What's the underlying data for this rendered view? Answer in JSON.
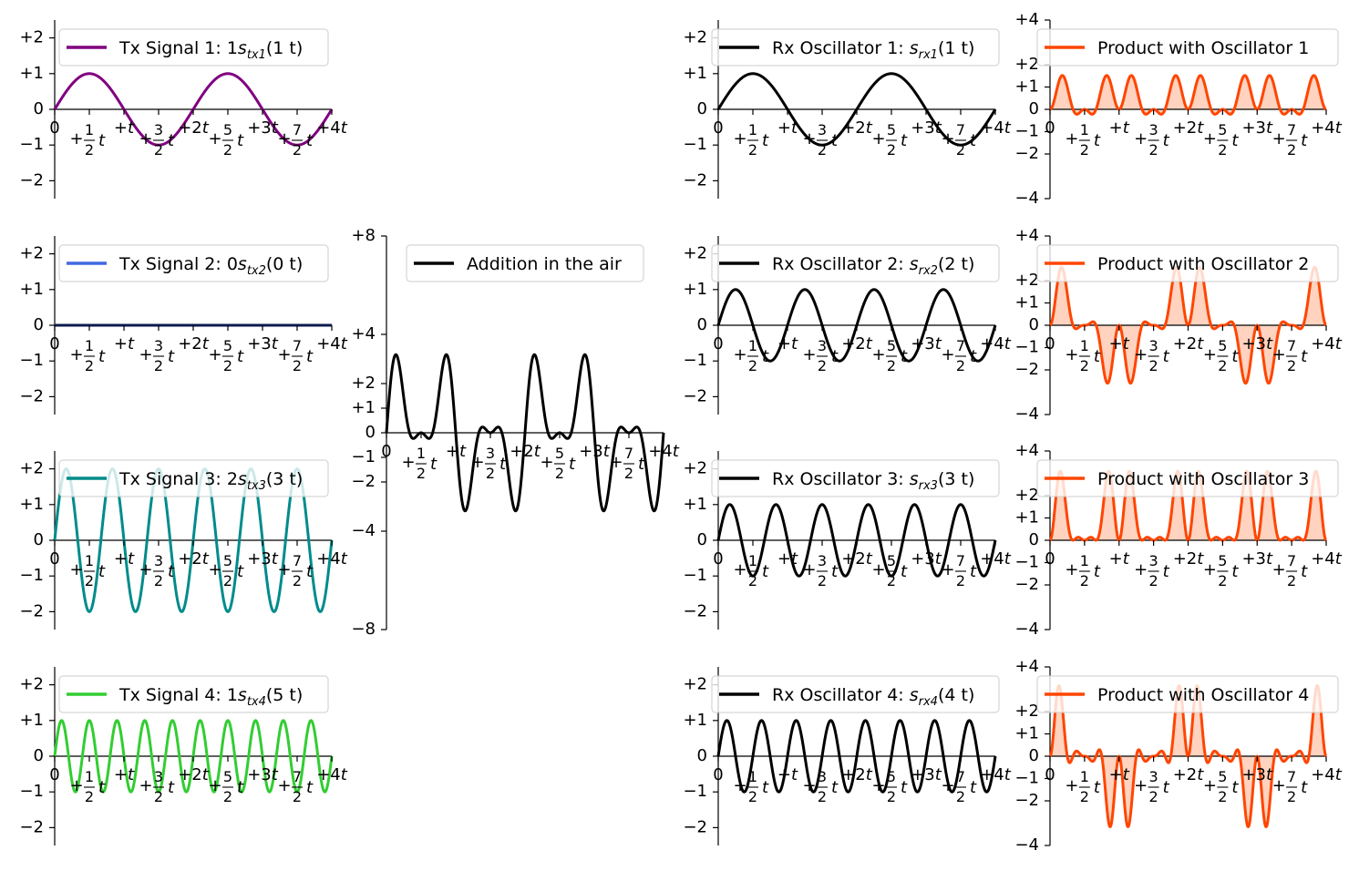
{
  "chart_data": [
    {
      "type": "line",
      "panel": "tx1",
      "formula": "tx",
      "series": [
        {
          "name": "Tx Signal 1: 1s_tx1(1 t)",
          "amplitude": 1,
          "frequency": 1,
          "color": "#800080"
        }
      ],
      "legend": {
        "label_main": "Tx Signal 1: 1",
        "label_symbol": "s",
        "label_sub": "tx1",
        "label_tail": "(1 t)"
      },
      "xlim": [
        0,
        4
      ],
      "ylim": [
        -2.5,
        2.5
      ],
      "xticks": [
        {
          "text": "0",
          "v": 0
        },
        {
          "text": "+½t",
          "v": 0.5
        },
        {
          "text": "+t",
          "v": 1
        },
        {
          "text": "+3/2t",
          "v": 1.5
        },
        {
          "text": "+2t",
          "v": 2
        },
        {
          "text": "+5/2t",
          "v": 2.5
        },
        {
          "text": "+3t",
          "v": 3
        },
        {
          "text": "+7/2t",
          "v": 3.5
        },
        {
          "text": "+4t",
          "v": 4
        }
      ],
      "yticks": [
        {
          "text": "−2",
          "v": -2
        },
        {
          "text": "−1",
          "v": -1
        },
        {
          "text": "0",
          "v": 0
        },
        {
          "text": "+1",
          "v": 1
        },
        {
          "text": "+2",
          "v": 2
        }
      ]
    },
    {
      "type": "line",
      "panel": "tx2",
      "formula": "tx",
      "series": [
        {
          "name": "Tx Signal 2: 0s_tx2(0 t)",
          "amplitude": 0,
          "frequency": 0,
          "color": "#4169e1"
        }
      ],
      "line_color": "#0b1b4d",
      "legend": {
        "label_main": "Tx Signal 2: 0",
        "label_symbol": "s",
        "label_sub": "tx2",
        "label_tail": "(0 t)"
      },
      "xlim": [
        0,
        4
      ],
      "ylim": [
        -2.5,
        2.5
      ],
      "xticks": [
        {
          "text": "0",
          "v": 0
        },
        {
          "text": "+½t",
          "v": 0.5
        },
        {
          "text": "+t",
          "v": 1
        },
        {
          "text": "+3/2t",
          "v": 1.5
        },
        {
          "text": "+2t",
          "v": 2
        },
        {
          "text": "+5/2t",
          "v": 2.5
        },
        {
          "text": "+3t",
          "v": 3
        },
        {
          "text": "+7/2t",
          "v": 3.5
        },
        {
          "text": "+4t",
          "v": 4
        }
      ],
      "yticks": [
        {
          "text": "−2",
          "v": -2
        },
        {
          "text": "−1",
          "v": -1
        },
        {
          "text": "0",
          "v": 0
        },
        {
          "text": "+1",
          "v": 1
        },
        {
          "text": "+2",
          "v": 2
        }
      ]
    },
    {
      "type": "line",
      "panel": "tx3",
      "formula": "tx",
      "series": [
        {
          "name": "Tx Signal 3: 2s_tx3(3 t)",
          "amplitude": 2,
          "frequency": 3,
          "color": "#008b8b"
        }
      ],
      "legend": {
        "label_main": "Tx Signal 3: 2",
        "label_symbol": "s",
        "label_sub": "tx3",
        "label_tail": "(3 t)"
      },
      "xlim": [
        0,
        4
      ],
      "ylim": [
        -2.5,
        2.5
      ],
      "xticks": [
        {
          "text": "0",
          "v": 0
        },
        {
          "text": "+½t",
          "v": 0.5
        },
        {
          "text": "+t",
          "v": 1
        },
        {
          "text": "+3/2t",
          "v": 1.5
        },
        {
          "text": "+2t",
          "v": 2
        },
        {
          "text": "+5/2t",
          "v": 2.5
        },
        {
          "text": "+3t",
          "v": 3
        },
        {
          "text": "+7/2t",
          "v": 3.5
        },
        {
          "text": "+4t",
          "v": 4
        }
      ],
      "yticks": [
        {
          "text": "−2",
          "v": -2
        },
        {
          "text": "−1",
          "v": -1
        },
        {
          "text": "0",
          "v": 0
        },
        {
          "text": "+1",
          "v": 1
        },
        {
          "text": "+2",
          "v": 2
        }
      ]
    },
    {
      "type": "line",
      "panel": "tx4",
      "formula": "tx",
      "series": [
        {
          "name": "Tx Signal 4: 1s_tx4(5 t)",
          "amplitude": 1,
          "frequency": 5,
          "color": "#32cd32"
        }
      ],
      "legend": {
        "label_main": "Tx Signal 4: 1",
        "label_symbol": "s",
        "label_sub": "tx4",
        "label_tail": "(5 t)"
      },
      "xlim": [
        0,
        4
      ],
      "ylim": [
        -2.5,
        2.5
      ],
      "xticks": [
        {
          "text": "0",
          "v": 0
        },
        {
          "text": "+½t",
          "v": 0.5
        },
        {
          "text": "+t",
          "v": 1
        },
        {
          "text": "+3/2t",
          "v": 1.5
        },
        {
          "text": "+2t",
          "v": 2
        },
        {
          "text": "+5/2t",
          "v": 2.5
        },
        {
          "text": "+3t",
          "v": 3
        },
        {
          "text": "+7/2t",
          "v": 3.5
        },
        {
          "text": "+4t",
          "v": 4
        }
      ],
      "yticks": [
        {
          "text": "−2",
          "v": -2
        },
        {
          "text": "−1",
          "v": -1
        },
        {
          "text": "0",
          "v": 0
        },
        {
          "text": "+1",
          "v": 1
        },
        {
          "text": "+2",
          "v": 2
        }
      ]
    },
    {
      "type": "line",
      "panel": "sum",
      "formula": "sum",
      "series": [
        {
          "name": "Addition in the air",
          "color": "#000000"
        }
      ],
      "legend": {
        "label_main": "Addition in the air"
      },
      "xlim": [
        0,
        4
      ],
      "ylim": [
        -8,
        8
      ],
      "xticks": [
        {
          "text": "0",
          "v": 0
        },
        {
          "text": "+½t",
          "v": 0.5
        },
        {
          "text": "+t",
          "v": 1
        },
        {
          "text": "+3/2t",
          "v": 1.5
        },
        {
          "text": "+2t",
          "v": 2
        },
        {
          "text": "+5/2t",
          "v": 2.5
        },
        {
          "text": "+3t",
          "v": 3
        },
        {
          "text": "+7/2t",
          "v": 3.5
        },
        {
          "text": "+4t",
          "v": 4
        }
      ],
      "yticks": [
        {
          "text": "−8",
          "v": -8
        },
        {
          "text": "−4",
          "v": -4
        },
        {
          "text": "−2",
          "v": -2
        },
        {
          "text": "−1",
          "v": -1
        },
        {
          "text": "0",
          "v": 0
        },
        {
          "text": "+1",
          "v": 1
        },
        {
          "text": "+2",
          "v": 2
        },
        {
          "text": "+4",
          "v": 4
        },
        {
          "text": "+8",
          "v": 8
        }
      ]
    },
    {
      "type": "line",
      "panel": "rx1",
      "formula": "rx",
      "series": [
        {
          "name": "Rx Oscillator 1: s_rx1(1 t)",
          "frequency": 1,
          "color": "#000000"
        }
      ],
      "legend": {
        "label_main": "Rx Oscillator 1: ",
        "label_symbol": "s",
        "label_sub": "rx1",
        "label_tail": "(1 t)"
      },
      "xlim": [
        0,
        4
      ],
      "ylim": [
        -2.5,
        2.5
      ],
      "xticks": [
        {
          "text": "0",
          "v": 0
        },
        {
          "text": "+½t",
          "v": 0.5
        },
        {
          "text": "+t",
          "v": 1
        },
        {
          "text": "+3/2t",
          "v": 1.5
        },
        {
          "text": "+2t",
          "v": 2
        },
        {
          "text": "+5/2t",
          "v": 2.5
        },
        {
          "text": "+3t",
          "v": 3
        },
        {
          "text": "+7/2t",
          "v": 3.5
        },
        {
          "text": "+4t",
          "v": 4
        }
      ],
      "yticks": [
        {
          "text": "−2",
          "v": -2
        },
        {
          "text": "−1",
          "v": -1
        },
        {
          "text": "0",
          "v": 0
        },
        {
          "text": "+1",
          "v": 1
        },
        {
          "text": "+2",
          "v": 2
        }
      ]
    },
    {
      "type": "line",
      "panel": "rx2",
      "formula": "rx",
      "series": [
        {
          "name": "Rx Oscillator 2: s_rx2(2 t)",
          "frequency": 2,
          "color": "#000000"
        }
      ],
      "legend": {
        "label_main": "Rx Oscillator 2: ",
        "label_symbol": "s",
        "label_sub": "rx2",
        "label_tail": "(2 t)"
      },
      "xlim": [
        0,
        4
      ],
      "ylim": [
        -2.5,
        2.5
      ],
      "xticks": [
        {
          "text": "0",
          "v": 0
        },
        {
          "text": "+½t",
          "v": 0.5
        },
        {
          "text": "+t",
          "v": 1
        },
        {
          "text": "+3/2t",
          "v": 1.5
        },
        {
          "text": "+2t",
          "v": 2
        },
        {
          "text": "+5/2t",
          "v": 2.5
        },
        {
          "text": "+3t",
          "v": 3
        },
        {
          "text": "+7/2t",
          "v": 3.5
        },
        {
          "text": "+4t",
          "v": 4
        }
      ],
      "yticks": [
        {
          "text": "−2",
          "v": -2
        },
        {
          "text": "−1",
          "v": -1
        },
        {
          "text": "0",
          "v": 0
        },
        {
          "text": "+1",
          "v": 1
        },
        {
          "text": "+2",
          "v": 2
        }
      ]
    },
    {
      "type": "line",
      "panel": "rx3",
      "formula": "rx",
      "series": [
        {
          "name": "Rx Oscillator 3: s_rx3(3 t)",
          "frequency": 3,
          "color": "#000000"
        }
      ],
      "legend": {
        "label_main": "Rx Oscillator 3: ",
        "label_symbol": "s",
        "label_sub": "rx3",
        "label_tail": "(3 t)"
      },
      "xlim": [
        0,
        4
      ],
      "ylim": [
        -2.5,
        2.5
      ],
      "xticks": [
        {
          "text": "0",
          "v": 0
        },
        {
          "text": "+½t",
          "v": 0.5
        },
        {
          "text": "+t",
          "v": 1
        },
        {
          "text": "+3/2t",
          "v": 1.5
        },
        {
          "text": "+2t",
          "v": 2
        },
        {
          "text": "+5/2t",
          "v": 2.5
        },
        {
          "text": "+3t",
          "v": 3
        },
        {
          "text": "+7/2t",
          "v": 3.5
        },
        {
          "text": "+4t",
          "v": 4
        }
      ],
      "yticks": [
        {
          "text": "−2",
          "v": -2
        },
        {
          "text": "−1",
          "v": -1
        },
        {
          "text": "0",
          "v": 0
        },
        {
          "text": "+1",
          "v": 1
        },
        {
          "text": "+2",
          "v": 2
        }
      ]
    },
    {
      "type": "line",
      "panel": "rx4",
      "formula": "rx",
      "series": [
        {
          "name": "Rx Oscillator 4: s_rx4(4 t)",
          "frequency": 4,
          "color": "#000000"
        }
      ],
      "legend": {
        "label_main": "Rx Oscillator 4: ",
        "label_symbol": "s",
        "label_sub": "rx4",
        "label_tail": "(4 t)"
      },
      "xlim": [
        0,
        4
      ],
      "ylim": [
        -2.5,
        2.5
      ],
      "xticks": [
        {
          "text": "0",
          "v": 0
        },
        {
          "text": "+½t",
          "v": 0.5
        },
        {
          "text": "+t",
          "v": 1
        },
        {
          "text": "+3/2t",
          "v": 1.5
        },
        {
          "text": "+2t",
          "v": 2
        },
        {
          "text": "+5/2t",
          "v": 2.5
        },
        {
          "text": "+3t",
          "v": 3
        },
        {
          "text": "+7/2t",
          "v": 3.5
        },
        {
          "text": "+4t",
          "v": 4
        }
      ],
      "yticks": [
        {
          "text": "−2",
          "v": -2
        },
        {
          "text": "−1",
          "v": -1
        },
        {
          "text": "0",
          "v": 0
        },
        {
          "text": "+1",
          "v": 1
        },
        {
          "text": "+2",
          "v": 2
        }
      ]
    },
    {
      "type": "area",
      "panel": "prod1",
      "formula": "product",
      "oscillator_frequency": 1,
      "series": [
        {
          "name": "Product with Oscillator 1",
          "color": "#ff4500",
          "fill": "#ffd3bf"
        }
      ],
      "legend": {
        "label_main": "Product with Oscillator 1"
      },
      "xlim": [
        0,
        4
      ],
      "ylim": [
        -4,
        4
      ],
      "xticks": [
        {
          "text": "0",
          "v": 0
        },
        {
          "text": "+½t",
          "v": 0.5
        },
        {
          "text": "+t",
          "v": 1
        },
        {
          "text": "+3/2t",
          "v": 1.5
        },
        {
          "text": "+2t",
          "v": 2
        },
        {
          "text": "+5/2t",
          "v": 2.5
        },
        {
          "text": "+3t",
          "v": 3
        },
        {
          "text": "+7/2t",
          "v": 3.5
        },
        {
          "text": "+4t",
          "v": 4
        }
      ],
      "yticks": [
        {
          "text": "−4",
          "v": -4
        },
        {
          "text": "−2",
          "v": -2
        },
        {
          "text": "−1",
          "v": -1
        },
        {
          "text": "0",
          "v": 0
        },
        {
          "text": "+1",
          "v": 1
        },
        {
          "text": "+2",
          "v": 2
        },
        {
          "text": "+4",
          "v": 4
        }
      ]
    },
    {
      "type": "area",
      "panel": "prod2",
      "formula": "product",
      "oscillator_frequency": 2,
      "series": [
        {
          "name": "Product with Oscillator 2",
          "color": "#ff4500",
          "fill": "#ffd3bf"
        }
      ],
      "legend": {
        "label_main": "Product with Oscillator 2"
      },
      "xlim": [
        0,
        4
      ],
      "ylim": [
        -4,
        4
      ],
      "xticks": [
        {
          "text": "0",
          "v": 0
        },
        {
          "text": "+½t",
          "v": 0.5
        },
        {
          "text": "+t",
          "v": 1
        },
        {
          "text": "+3/2t",
          "v": 1.5
        },
        {
          "text": "+2t",
          "v": 2
        },
        {
          "text": "+5/2t",
          "v": 2.5
        },
        {
          "text": "+3t",
          "v": 3
        },
        {
          "text": "+7/2t",
          "v": 3.5
        },
        {
          "text": "+4t",
          "v": 4
        }
      ],
      "yticks": [
        {
          "text": "−4",
          "v": -4
        },
        {
          "text": "−2",
          "v": -2
        },
        {
          "text": "−1",
          "v": -1
        },
        {
          "text": "0",
          "v": 0
        },
        {
          "text": "+1",
          "v": 1
        },
        {
          "text": "+2",
          "v": 2
        },
        {
          "text": "+4",
          "v": 4
        }
      ]
    },
    {
      "type": "area",
      "panel": "prod3",
      "formula": "product",
      "oscillator_frequency": 3,
      "series": [
        {
          "name": "Product with Oscillator 3",
          "color": "#ff4500",
          "fill": "#ffd3bf"
        }
      ],
      "legend": {
        "label_main": "Product with Oscillator 3"
      },
      "xlim": [
        0,
        4
      ],
      "ylim": [
        -4,
        4
      ],
      "xticks": [
        {
          "text": "0",
          "v": 0
        },
        {
          "text": "+½t",
          "v": 0.5
        },
        {
          "text": "+t",
          "v": 1
        },
        {
          "text": "+3/2t",
          "v": 1.5
        },
        {
          "text": "+2t",
          "v": 2
        },
        {
          "text": "+5/2t",
          "v": 2.5
        },
        {
          "text": "+3t",
          "v": 3
        },
        {
          "text": "+7/2t",
          "v": 3.5
        },
        {
          "text": "+4t",
          "v": 4
        }
      ],
      "yticks": [
        {
          "text": "−4",
          "v": -4
        },
        {
          "text": "−2",
          "v": -2
        },
        {
          "text": "−1",
          "v": -1
        },
        {
          "text": "0",
          "v": 0
        },
        {
          "text": "+1",
          "v": 1
        },
        {
          "text": "+2",
          "v": 2
        },
        {
          "text": "+4",
          "v": 4
        }
      ]
    },
    {
      "type": "area",
      "panel": "prod4",
      "formula": "product",
      "oscillator_frequency": 4,
      "series": [
        {
          "name": "Product with Oscillator 4",
          "color": "#ff4500",
          "fill": "#ffd3bf"
        }
      ],
      "legend": {
        "label_main": "Product with Oscillator 4"
      },
      "xlim": [
        0,
        4
      ],
      "ylim": [
        -4,
        4
      ],
      "xticks": [
        {
          "text": "0",
          "v": 0
        },
        {
          "text": "+½t",
          "v": 0.5
        },
        {
          "text": "+t",
          "v": 1
        },
        {
          "text": "+3/2t",
          "v": 1.5
        },
        {
          "text": "+2t",
          "v": 2
        },
        {
          "text": "+5/2t",
          "v": 2.5
        },
        {
          "text": "+3t",
          "v": 3
        },
        {
          "text": "+7/2t",
          "v": 3.5
        },
        {
          "text": "+4t",
          "v": 4
        }
      ],
      "yticks": [
        {
          "text": "−4",
          "v": -4
        },
        {
          "text": "−2",
          "v": -2
        },
        {
          "text": "−1",
          "v": -1
        },
        {
          "text": "0",
          "v": 0
        },
        {
          "text": "+1",
          "v": 1
        },
        {
          "text": "+2",
          "v": 2
        },
        {
          "text": "+4",
          "v": 4
        }
      ]
    }
  ]
}
